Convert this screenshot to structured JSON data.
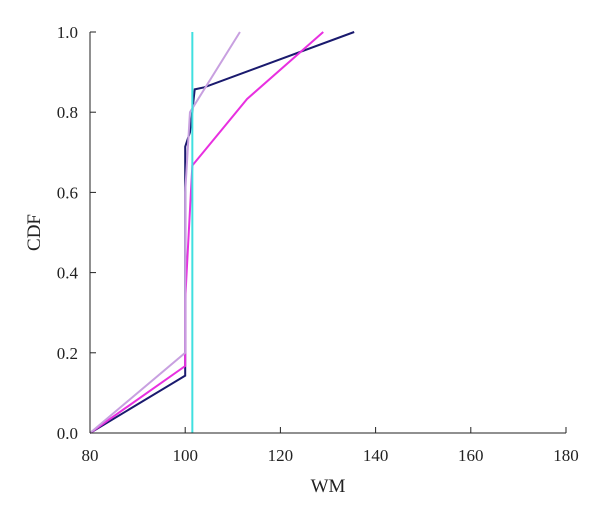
{
  "chart_data": {
    "type": "line",
    "title": "",
    "xlabel": "WM",
    "ylabel": "CDF",
    "xlim": [
      80,
      180
    ],
    "ylim": [
      0,
      1.0
    ],
    "xticks": [
      80,
      100,
      120,
      140,
      160,
      180
    ],
    "yticks": [
      "0.0",
      "0.2",
      "0.4",
      "0.6",
      "0.8",
      "1.0"
    ],
    "grid": false,
    "legend": "none",
    "series": [
      {
        "color": "#1a1a6e",
        "points": [
          [
            80,
            0
          ],
          [
            100,
            0.143
          ],
          [
            100,
            0.714
          ],
          [
            101,
            0.75
          ],
          [
            102,
            0.857
          ],
          [
            104,
            0.862
          ],
          [
            135.5,
            1.0
          ]
        ]
      },
      {
        "color": "#e830e0",
        "points": [
          [
            80,
            0
          ],
          [
            100,
            0.167
          ],
          [
            100,
            0.333
          ],
          [
            101.5,
            0.667
          ],
          [
            113,
            0.833
          ],
          [
            129,
            1.0
          ]
        ]
      },
      {
        "color": "#c8a0e0",
        "points": [
          [
            80,
            0
          ],
          [
            100,
            0.2
          ],
          [
            100,
            0.6
          ],
          [
            101,
            0.8
          ],
          [
            111.5,
            1.0
          ]
        ]
      },
      {
        "color": "#40e0e0",
        "points": [
          [
            101.5,
            0
          ],
          [
            101.5,
            1.0
          ]
        ]
      }
    ]
  }
}
